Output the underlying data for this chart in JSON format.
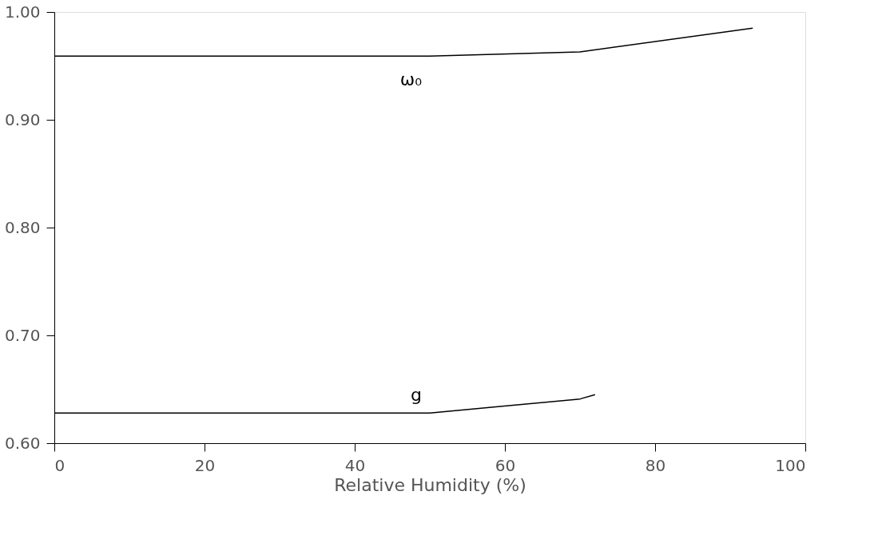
{
  "chart_data": {
    "type": "line",
    "xlabel": "Relative Humidity (%)",
    "xlim": [
      0,
      100
    ],
    "xticks": [
      0,
      20,
      40,
      60,
      80,
      100
    ],
    "ylim": [
      0.6,
      1.0
    ],
    "yticks": [
      {
        "value": 0.6,
        "label": "0.60"
      },
      {
        "value": 0.7,
        "label": "0.70"
      },
      {
        "value": 0.8,
        "label": "0.80"
      },
      {
        "value": 0.9,
        "label": "0.90"
      },
      {
        "value": 1.0,
        "label": "1.00"
      }
    ],
    "grid": false,
    "legend": false,
    "marker": "none",
    "line_style": "solid",
    "series": [
      {
        "name": "ω₀",
        "color": "#000000",
        "x": [
          0,
          50,
          70,
          93
        ],
        "values": [
          0.959,
          0.959,
          0.963,
          0.985
        ]
      },
      {
        "name": "g",
        "color": "#000000",
        "x": [
          0,
          50,
          70,
          72
        ],
        "values": [
          0.628,
          0.628,
          0.641,
          0.645
        ]
      }
    ]
  }
}
